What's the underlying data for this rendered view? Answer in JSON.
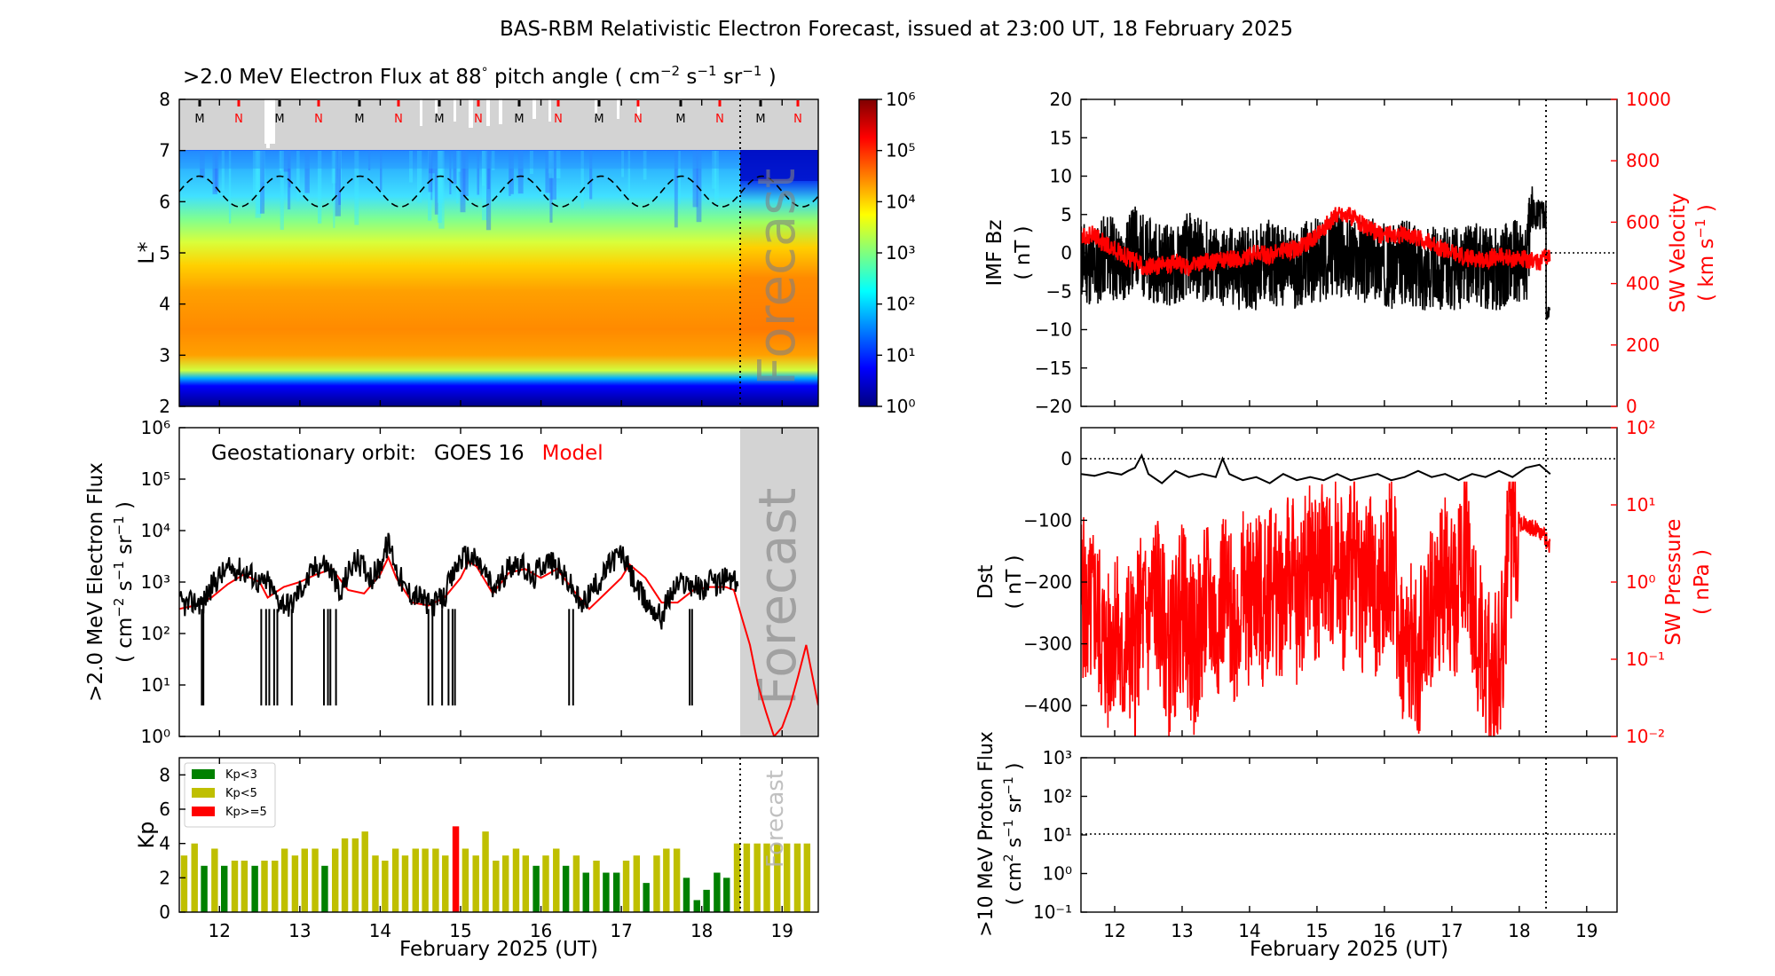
{
  "title": "BAS-RBM Relativistic Electron Forecast, issued at 23:00 UT, 18 February 2025",
  "panels": {
    "lstar": {
      "title": ">2.0 MeV Electron Flux at 88° pitch angle ( cm⁻² s⁻¹ sr⁻¹ )",
      "title_main": ">2.0 MeV Electron Flux at 88",
      "title_deg": "°",
      "title_rest": " pitch angle ( cm",
      "title_units": [
        "−2",
        "−1",
        "−1"
      ],
      "ylabel": "L*",
      "yticks": [
        "2",
        "3",
        "4",
        "5",
        "6",
        "7",
        "8"
      ],
      "forecast_label": "Forecast",
      "markers": [
        "M",
        "N",
        "M",
        "N",
        "M",
        "N",
        "M",
        "N",
        "M",
        "N",
        "M",
        "N",
        "M",
        "N",
        "M",
        "N"
      ],
      "colorbar_ticks": [
        "10⁰",
        "10¹",
        "10²",
        "10³",
        "10⁴",
        "10⁵",
        "10⁶"
      ]
    },
    "geo": {
      "legend_label": "Geostationary orbit:",
      "legend_obs": "GOES 16",
      "legend_model": "Model",
      "ylabel_1": ">2.0 MeV Electron Flux",
      "ylabel_2": "( cm⁻² s⁻¹ sr⁻¹ )",
      "forecast_label": "Forecast"
    },
    "kp": {
      "ylabel": "Kp",
      "legend": [
        "Kp<3",
        "Kp<5",
        "Kp>=5"
      ],
      "forecast_label": "Forecast",
      "xlabel": "February 2025 (UT)"
    },
    "imf": {
      "ylabel_1": "IMF Bz",
      "ylabel_2": "( nT )",
      "ylabel_right_1": "SW Velocity",
      "ylabel_right_2": "( km s⁻¹ )"
    },
    "dst": {
      "ylabel_1": "Dst",
      "ylabel_2": "( nT )",
      "ylabel_right_1": "SW Pressure",
      "ylabel_right_2": "( nPa )"
    },
    "proton": {
      "ylabel_1": ">10 MeV Proton Flux",
      "ylabel_2": "( cm² s⁻¹ sr⁻¹ )",
      "xlabel": "February 2025 (UT)"
    }
  },
  "colors": {
    "obs": "#000000",
    "model": "#ff0000",
    "kp_low": "#008000",
    "kp_mid": "#bfbf00",
    "kp_high": "#ff0000",
    "forecast_shade": "#d3d3d3"
  },
  "chart_data": [
    {
      "type": "heatmap",
      "title": ">2.0 MeV Electron Flux at 88° pitch angle ( cm⁻² s⁻¹ sr⁻¹ )",
      "ylabel": "L*",
      "xlim": [
        "2025-02-11.5",
        "2025-02-19.45"
      ],
      "ylim": [
        2,
        8
      ],
      "colorbar": {
        "scale": "log",
        "range": [
          1,
          1000000
        ]
      },
      "forecast_start": "2025-02-18.46",
      "x_ticks": [
        "12",
        "13",
        "14",
        "15",
        "16",
        "17",
        "18",
        "19"
      ],
      "yticks": [
        2,
        3,
        4,
        5,
        6,
        7,
        8
      ],
      "magnetopause_dashed": "oscillating between L*~5.9 and ~6.5"
    },
    {
      "type": "line",
      "series": [
        {
          "name": "GOES 16",
          "x": [
            11.5,
            11.6,
            11.7,
            11.8,
            11.9,
            12.0,
            12.1,
            12.2,
            12.3,
            12.4,
            12.5,
            12.6,
            12.7,
            12.8,
            12.9,
            13.0,
            13.1,
            13.2,
            13.3,
            13.4,
            13.5,
            13.6,
            13.7,
            13.8,
            13.9,
            14.0,
            14.1,
            14.2,
            14.3,
            14.4,
            14.5,
            14.6,
            14.7,
            14.8,
            14.9,
            15.0,
            15.1,
            15.2,
            15.3,
            15.4,
            15.5,
            15.6,
            15.7,
            15.8,
            15.9,
            16.0,
            16.1,
            16.2,
            16.3,
            16.4,
            16.5,
            16.6,
            16.7,
            16.8,
            16.9,
            17.0,
            17.1,
            17.2,
            17.3,
            17.4,
            17.5,
            17.6,
            17.7,
            17.8,
            17.9,
            18.0,
            18.1,
            18.2,
            18.3,
            18.4,
            18.46
          ],
          "y": [
            400,
            350,
            420,
            380,
            800,
            1300,
            1700,
            1900,
            1600,
            1400,
            900,
            1000,
            500,
            400,
            350,
            700,
            1100,
            2000,
            2300,
            1500,
            400,
            1500,
            2600,
            1900,
            1200,
            2000,
            5500,
            1800,
            700,
            600,
            500,
            350,
            400,
            500,
            1200,
            2800,
            3200,
            2500,
            1500,
            700,
            1000,
            2000,
            2500,
            1800,
            1000,
            2200,
            2600,
            1800,
            1200,
            700,
            300,
            600,
            900,
            1500,
            2800,
            3500,
            1500,
            700,
            400,
            300,
            200,
            500,
            900,
            1000,
            900,
            700,
            1000,
            900,
            1200,
            1000,
            900
          ]
        },
        {
          "name": "Model",
          "x": [
            11.5,
            11.7,
            11.9,
            12.1,
            12.3,
            12.5,
            12.6,
            12.8,
            13.0,
            13.2,
            13.4,
            13.6,
            13.8,
            14.0,
            14.1,
            14.2,
            14.4,
            14.6,
            14.8,
            15.0,
            15.1,
            15.2,
            15.4,
            15.6,
            15.8,
            16.0,
            16.2,
            16.4,
            16.6,
            16.8,
            17.0,
            17.1,
            17.3,
            17.5,
            17.7,
            17.9,
            18.1,
            18.3,
            18.4,
            18.5,
            18.6,
            18.7,
            18.8,
            18.9,
            19.0,
            19.1,
            19.2,
            19.3,
            19.45
          ],
          "y": [
            300,
            350,
            500,
            900,
            1400,
            1000,
            500,
            800,
            1000,
            1400,
            1800,
            700,
            600,
            1400,
            3000,
            1200,
            400,
            350,
            500,
            1200,
            2500,
            2000,
            600,
            1500,
            1800,
            1200,
            1800,
            700,
            300,
            600,
            1200,
            2200,
            1200,
            400,
            400,
            700,
            800,
            800,
            700,
            200,
            60,
            10,
            3,
            1,
            1.5,
            4,
            15,
            60,
            4
          ]
        }
      ],
      "ylabel": ">2.0 MeV Electron Flux ( cm⁻² s⁻¹ sr⁻¹ )",
      "yscale": "log",
      "ylim": [
        1,
        1000000
      ],
      "xlim": [
        11.5,
        19.45
      ],
      "forecast_start": 18.46
    },
    {
      "type": "bar",
      "ylabel": "Kp",
      "xlabel": "February 2025 (UT)",
      "ylim": [
        0,
        9
      ],
      "xlim": [
        11.5,
        19.45
      ],
      "bar_width_days": 0.1,
      "x": [
        11.56,
        11.69,
        11.81,
        11.94,
        12.06,
        12.19,
        12.31,
        12.44,
        12.56,
        12.69,
        12.81,
        12.94,
        13.06,
        13.19,
        13.31,
        13.44,
        13.56,
        13.69,
        13.81,
        13.94,
        14.06,
        14.19,
        14.31,
        14.44,
        14.56,
        14.69,
        14.81,
        14.94,
        15.06,
        15.19,
        15.31,
        15.44,
        15.56,
        15.69,
        15.81,
        15.94,
        16.06,
        16.19,
        16.31,
        16.44,
        16.56,
        16.69,
        16.81,
        16.94,
        17.06,
        17.19,
        17.31,
        17.44,
        17.56,
        17.69,
        17.81,
        17.94,
        18.06,
        18.19,
        18.31,
        18.44,
        18.56,
        18.69,
        18.81,
        18.94,
        19.06,
        19.19,
        19.31
      ],
      "values": [
        3.3,
        4.0,
        2.7,
        3.7,
        2.7,
        3.0,
        3.0,
        2.7,
        3.0,
        3.0,
        3.7,
        3.3,
        3.7,
        3.7,
        2.7,
        3.7,
        4.3,
        4.3,
        4.7,
        3.3,
        3.0,
        3.7,
        3.3,
        3.7,
        3.7,
        3.7,
        3.3,
        5.0,
        3.7,
        3.3,
        4.7,
        3.0,
        3.3,
        3.7,
        3.3,
        2.7,
        3.3,
        3.7,
        2.7,
        3.3,
        2.3,
        3.0,
        2.3,
        2.3,
        3.0,
        3.3,
        1.7,
        3.3,
        3.7,
        3.7,
        2.0,
        0.7,
        1.3,
        2.3,
        2.0,
        4.0,
        4.0,
        4.0,
        4.0,
        4.0,
        4.0,
        4.0,
        4.0
      ],
      "legend": [
        "Kp<3",
        "Kp<5",
        "Kp>=5"
      ],
      "forecast_start": 18.46
    },
    {
      "type": "line",
      "ylabel": "IMF Bz ( nT )",
      "ylim": [
        -20,
        20
      ],
      "yticks": [
        -20,
        -15,
        -10,
        -5,
        0,
        5,
        10,
        15,
        20
      ],
      "right_axis": {
        "label": "SW Velocity ( km s⁻¹ )",
        "ylim": [
          0,
          1000
        ],
        "yticks": [
          0,
          200,
          400,
          600,
          800,
          1000
        ]
      },
      "xlim": [
        11.5,
        19.45
      ],
      "x_ticks": [
        "12",
        "13",
        "14",
        "15",
        "16",
        "17",
        "18",
        "19"
      ],
      "series": [
        {
          "name": "IMF Bz",
          "x": [
            11.5,
            11.7,
            11.9,
            12.1,
            12.3,
            12.5,
            12.7,
            12.9,
            13.1,
            13.3,
            13.5,
            13.7,
            13.9,
            14.1,
            14.3,
            14.5,
            14.7,
            14.9,
            15.1,
            15.3,
            15.5,
            15.7,
            15.9,
            16.1,
            16.3,
            16.5,
            16.7,
            16.9,
            17.1,
            17.3,
            17.5,
            17.7,
            17.9,
            18.1,
            18.2,
            18.3,
            18.4,
            18.46
          ],
          "y": [
            -1,
            -2,
            0,
            -2,
            1,
            -1,
            -1,
            -2,
            0,
            -1,
            -2,
            -2,
            -2,
            -2,
            -1,
            -2,
            -2,
            -1,
            -1,
            0,
            -1,
            -1,
            -1,
            -2,
            -1,
            -2,
            -2,
            -2,
            -2,
            -1,
            -2,
            -2,
            -1,
            -2,
            6,
            5,
            -8,
            -8
          ]
        },
        {
          "name": "SW Velocity",
          "x": [
            11.5,
            11.7,
            11.9,
            12.1,
            12.3,
            12.5,
            12.7,
            12.9,
            13.1,
            13.3,
            13.5,
            13.7,
            13.9,
            14.1,
            14.3,
            14.5,
            14.7,
            14.9,
            15.1,
            15.3,
            15.5,
            15.7,
            15.9,
            16.1,
            16.3,
            16.5,
            16.7,
            16.9,
            17.1,
            17.3,
            17.5,
            17.7,
            17.9,
            18.1,
            18.3,
            18.46
          ],
          "y": [
            550,
            560,
            520,
            500,
            470,
            450,
            460,
            470,
            450,
            470,
            470,
            480,
            480,
            500,
            490,
            510,
            510,
            540,
            580,
            630,
            620,
            590,
            560,
            560,
            560,
            550,
            530,
            510,
            490,
            480,
            480,
            490,
            480,
            480,
            470,
            490
          ]
        }
      ],
      "forecast_start": 18.46
    },
    {
      "type": "line",
      "ylabel": "Dst ( nT )",
      "ylim": [
        -450,
        50
      ],
      "yticks": [
        -400,
        -300,
        -200,
        -100,
        0
      ],
      "right_axis": {
        "label": "SW Pressure ( nPa )",
        "scale": "log",
        "ylim": [
          0.01,
          100
        ],
        "yticks": [
          "10⁻²",
          "10⁻¹",
          "10⁰",
          "10¹",
          "10²"
        ]
      },
      "xlim": [
        11.5,
        19.45
      ],
      "series": [
        {
          "name": "Dst",
          "x": [
            11.5,
            11.7,
            11.9,
            12.1,
            12.2,
            12.3,
            12.4,
            12.5,
            12.7,
            12.9,
            13.1,
            13.3,
            13.5,
            13.6,
            13.7,
            13.9,
            14.1,
            14.3,
            14.5,
            14.7,
            14.9,
            15.1,
            15.3,
            15.5,
            15.7,
            15.9,
            16.1,
            16.3,
            16.5,
            16.7,
            16.9,
            17.1,
            17.3,
            17.5,
            17.7,
            17.9,
            18.1,
            18.3,
            18.46
          ],
          "y": [
            -25,
            -28,
            -22,
            -26,
            -20,
            -15,
            5,
            -25,
            -40,
            -20,
            -30,
            -25,
            -30,
            0,
            -25,
            -35,
            -30,
            -40,
            -25,
            -35,
            -30,
            -35,
            -25,
            -35,
            -30,
            -25,
            -35,
            -30,
            -20,
            -30,
            -25,
            -35,
            -25,
            -30,
            -20,
            -30,
            -15,
            -10,
            -25
          ]
        },
        {
          "name": "SW Pressure",
          "x": [
            11.5,
            11.6,
            11.7,
            11.8,
            11.9,
            12.0,
            12.1,
            12.2,
            12.3,
            12.4,
            12.5,
            12.6,
            12.7,
            12.8,
            12.9,
            13.0,
            13.1,
            13.2,
            13.3,
            13.4,
            13.5,
            13.6,
            13.7,
            13.8,
            13.9,
            14.0,
            14.1,
            14.2,
            14.3,
            14.4,
            14.5,
            14.6,
            14.7,
            14.8,
            14.9,
            15.0,
            15.1,
            15.2,
            15.3,
            15.4,
            15.5,
            15.6,
            15.7,
            15.8,
            15.9,
            16.0,
            16.1,
            16.2,
            16.3,
            16.4,
            16.5,
            16.6,
            16.7,
            16.8,
            16.9,
            17.0,
            17.1,
            17.2,
            17.3,
            17.4,
            17.5,
            17.6,
            17.7,
            17.8,
            17.9,
            18.0,
            18.1,
            18.2,
            18.3,
            18.4,
            18.46
          ],
          "y": [
            0.8,
            0.3,
            0.5,
            0.2,
            0.1,
            0.3,
            0.05,
            0.2,
            0.1,
            0.4,
            0.3,
            0.8,
            0.3,
            0.1,
            0.2,
            0.5,
            0.2,
            0.1,
            0.3,
            0.6,
            0.2,
            0.8,
            0.4,
            0.3,
            0.7,
            0.5,
            1.0,
            0.3,
            1.2,
            0.6,
            0.8,
            1.5,
            0.4,
            1.0,
            2.0,
            0.8,
            2.5,
            1.2,
            3.0,
            0.5,
            2.0,
            1.5,
            0.6,
            1.2,
            0.4,
            0.8,
            2.0,
            0.3,
            0.1,
            0.2,
            0.05,
            0.3,
            0.5,
            0.8,
            1.0,
            0.6,
            0.9,
            3.0,
            0.6,
            0.2,
            0.05,
            0.08,
            0.1,
            0.3,
            5.0,
            6.0,
            5.5,
            5.0,
            4.5,
            3.5,
            3.0
          ]
        }
      ],
      "forecast_start": 18.46
    },
    {
      "type": "line",
      "ylabel": ">10 MeV Proton Flux ( cm² s⁻¹ sr⁻¹ )",
      "xlabel": "February 2025 (UT)",
      "yscale": "log",
      "ylim": [
        0.1,
        1000
      ],
      "yticks": [
        "10⁻¹",
        "10⁰",
        "10¹",
        "10²",
        "10³"
      ],
      "xlim": [
        11.5,
        19.45
      ],
      "x_ticks": [
        "12",
        "13",
        "14",
        "15",
        "16",
        "17",
        "18",
        "19"
      ],
      "threshold": 10,
      "series": [],
      "forecast_start": 18.46
    }
  ]
}
